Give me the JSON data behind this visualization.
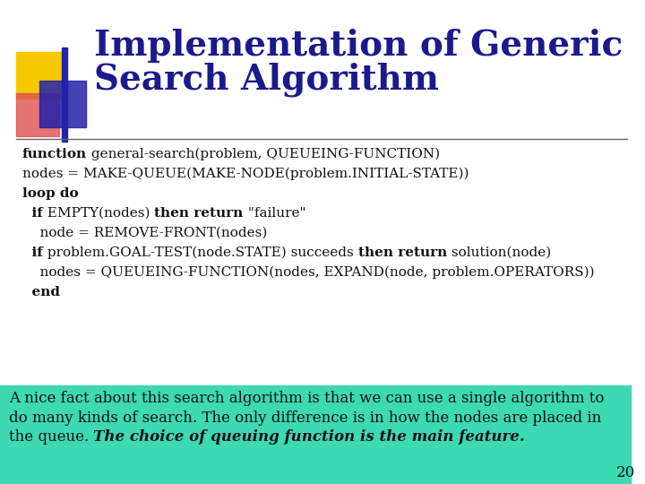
{
  "title_line1": "Implementation of Generic",
  "title_line2": "Search Algorithm",
  "title_color": "#1a1a8c",
  "title_fontsize": 28,
  "bg_color": "#ffffff",
  "note_bg": "#3dd9b3",
  "note_text_line1": "A nice fact about this search algorithm is that we can use a single algorithm to",
  "note_text_line2": "do many kinds of search. The only difference is in how the nodes are placed in",
  "note_text_line3_normal": "the queue. ",
  "note_text_line3_bold_italic": "The choice of queuing function is the main feature.",
  "note_fontsize": 12,
  "page_number": "20",
  "deco_yellow": "#f5c800",
  "deco_red": "#e05050",
  "deco_blue": "#2222aa",
  "separator_color": "#666666",
  "code_fontsize": 11,
  "code_color": "#111111",
  "code_lines": [
    [
      [
        "function",
        true
      ],
      [
        " general-search(problem, QUEUEING-FUNCTION)",
        false
      ]
    ],
    [
      [
        "nodes = MAKE-QUEUE(MAKE-NODE(problem.INITIAL-STATE))",
        false
      ]
    ],
    [
      [
        "loop do",
        true
      ]
    ],
    [
      [
        "  if",
        true
      ],
      [
        " EMPTY(nodes) ",
        false
      ],
      [
        "then return",
        true
      ],
      [
        " \"failure\"",
        false
      ]
    ],
    [
      [
        "    node = REMOVE-FRONT(nodes)",
        false
      ]
    ],
    [
      [
        "  if",
        true
      ],
      [
        " problem.GOAL-TEST(node.STATE) succeeds ",
        false
      ],
      [
        "then return",
        true
      ],
      [
        " solution(node)",
        false
      ]
    ],
    [
      [
        "    nodes = QUEUEING-FUNCTION(nodes, EXPAND(node, problem.OPERATORS))",
        false
      ]
    ],
    [
      [
        "  end",
        true
      ]
    ]
  ]
}
